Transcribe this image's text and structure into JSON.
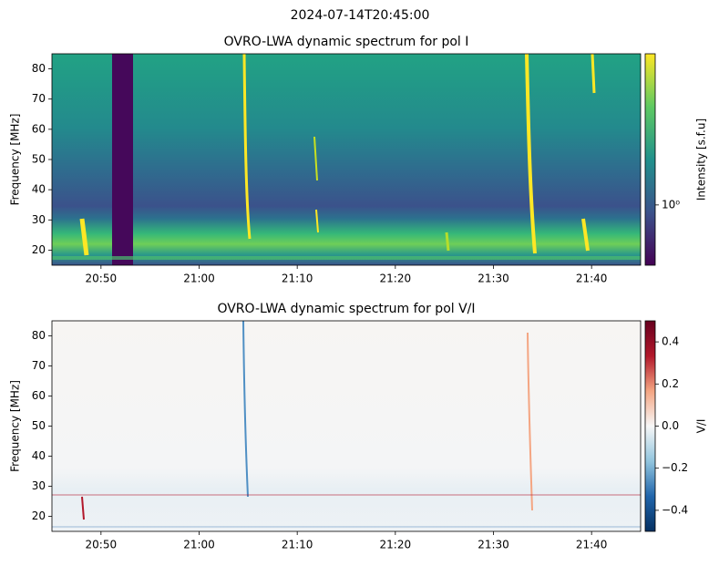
{
  "suptitle": "2024-07-14T20:45:00",
  "chart_data": [
    {
      "type": "heatmap",
      "title": "OVRO-LWA dynamic spectrum for pol I",
      "ylabel": "Frequency [MHz]",
      "xlim": [
        1245,
        1305
      ],
      "xticks": [
        {
          "value": 1250,
          "label": "20:50"
        },
        {
          "value": 1260,
          "label": "21:00"
        },
        {
          "value": 1270,
          "label": "21:10"
        },
        {
          "value": 1280,
          "label": "21:20"
        },
        {
          "value": 1290,
          "label": "21:30"
        },
        {
          "value": 1300,
          "label": "21:40"
        }
      ],
      "ylim": [
        15,
        85
      ],
      "yticks": [
        20,
        30,
        40,
        50,
        60,
        70,
        80
      ],
      "colorbar": {
        "label": "Intensity [s.f.u]",
        "colormap": "viridis",
        "log": true,
        "lim": [
          0.6,
          3.6
        ],
        "ticks": [
          {
            "value": 1,
            "label": "10⁰"
          }
        ]
      }
    },
    {
      "type": "heatmap",
      "title": "OVRO-LWA dynamic spectrum for pol V/I",
      "ylabel": "Frequency [MHz]",
      "xlim": [
        1245,
        1305
      ],
      "xticks": [
        {
          "value": 1250,
          "label": "20:50"
        },
        {
          "value": 1260,
          "label": "21:00"
        },
        {
          "value": 1270,
          "label": "21:10"
        },
        {
          "value": 1280,
          "label": "21:20"
        },
        {
          "value": 1290,
          "label": "21:30"
        },
        {
          "value": 1300,
          "label": "21:40"
        }
      ],
      "ylim": [
        15,
        85
      ],
      "yticks": [
        20,
        30,
        40,
        50,
        60,
        70,
        80
      ],
      "colorbar": {
        "label": "V/I",
        "colormap": "RdBu_r",
        "log": false,
        "lim": [
          -0.5,
          0.5
        ],
        "ticks": [
          {
            "value": -0.4,
            "label": "−0.4"
          },
          {
            "value": -0.2,
            "label": "−0.2"
          },
          {
            "value": 0,
            "label": "0.0"
          },
          0.2,
          0.4
        ]
      }
    }
  ]
}
